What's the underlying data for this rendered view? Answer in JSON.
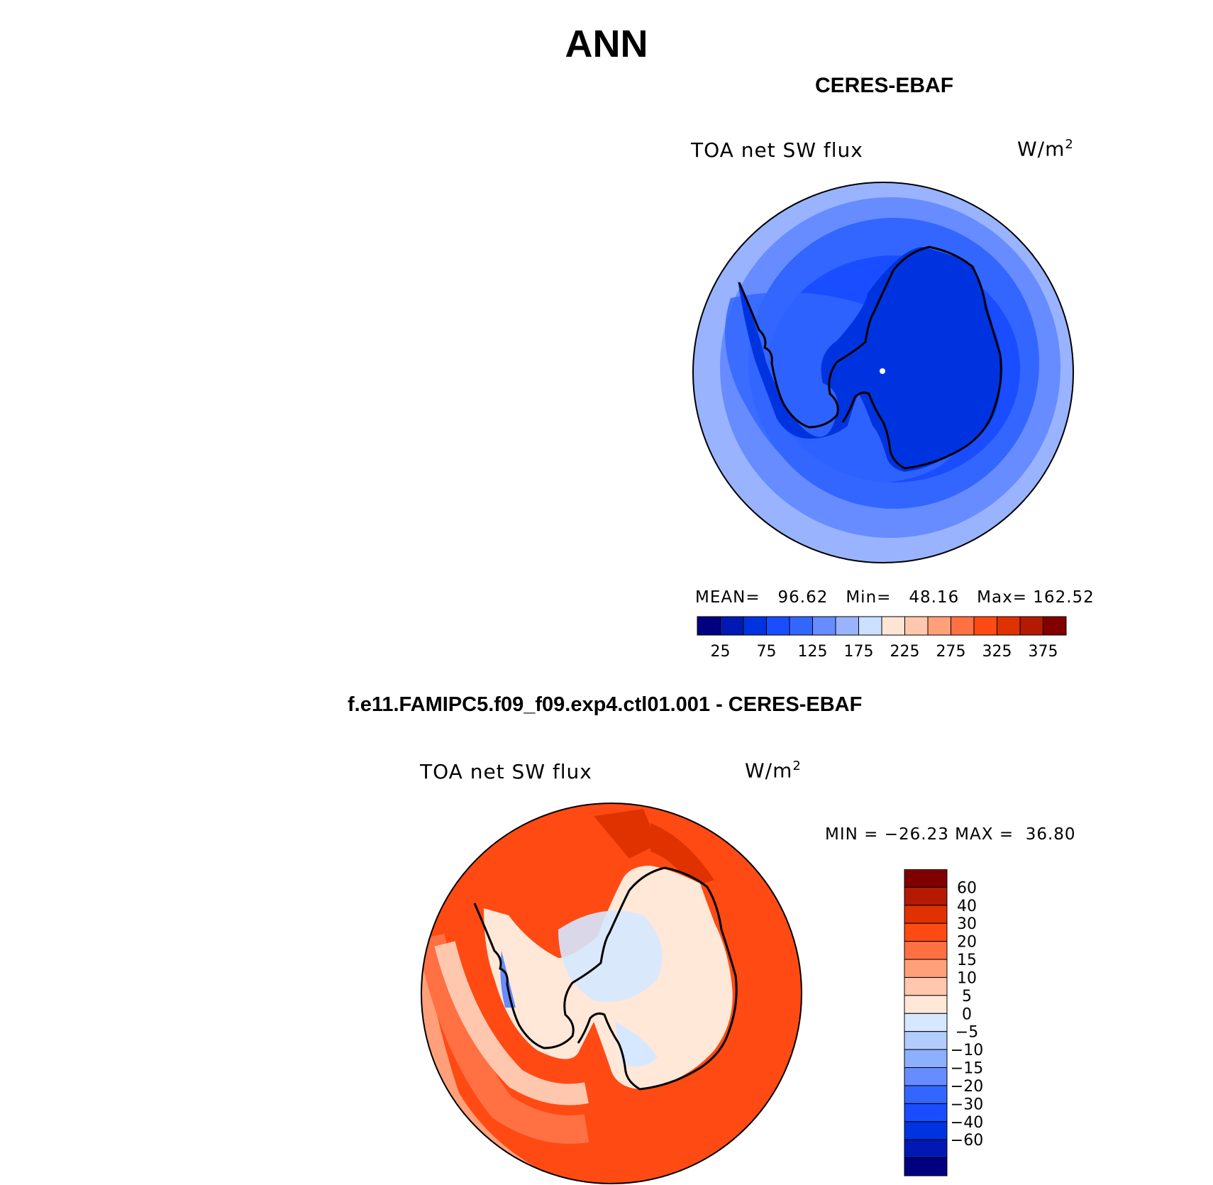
{
  "figure": {
    "title": "ANN"
  },
  "top_panel": {
    "title": "CERES-EBAF",
    "variable": "TOA net SW flux",
    "units_base": "W/m",
    "units_exp": "2",
    "stats": {
      "mean_label": "MEAN=",
      "mean": "96.62",
      "min_label": "Min=",
      "min": "48.16",
      "max_label": "Max=",
      "max": "162.52"
    },
    "colorbar": {
      "orientation": "horizontal",
      "colors": [
        "#000080",
        "#0019b3",
        "#0033e0",
        "#1a4dff",
        "#3366ff",
        "#668cff",
        "#99b3ff",
        "#cce0ff",
        "#ffe5d6",
        "#ffc7ad",
        "#ffa07a",
        "#ff7043",
        "#ff4a14",
        "#e03200",
        "#b31a00",
        "#800000"
      ],
      "tick_labels": [
        "25",
        "75",
        "125",
        "175",
        "225",
        "275",
        "325",
        "375"
      ]
    }
  },
  "bottom_panel": {
    "title": "f.e11.FAMIPC5.f09_f09.exp4.ctl01.001 - CERES-EBAF",
    "variable": "TOA net SW flux",
    "units_base": "W/m",
    "units_exp": "2",
    "stats": {
      "min_label": "MIN = ",
      "min": "−26.23",
      "max_label": "MAX = ",
      "max": "36.80"
    },
    "colorbar": {
      "orientation": "vertical",
      "colors_top_to_bottom": [
        "#800000",
        "#b31a00",
        "#e03200",
        "#ff4a14",
        "#ff7043",
        "#ffa07a",
        "#ffc7ad",
        "#ffe8d8",
        "#d6e8ff",
        "#b3ccff",
        "#8cb0ff",
        "#668cff",
        "#3366ff",
        "#1a4dff",
        "#0033e0",
        "#0019b3",
        "#000080"
      ],
      "tick_labels": [
        "60",
        "40",
        "30",
        "20",
        "15",
        "10",
        "5",
        "0",
        "−5",
        "−10",
        "−15",
        "−20",
        "−30",
        "−40",
        "−60"
      ]
    }
  },
  "colors": {
    "land_outline": "#000000",
    "text": "#000000"
  }
}
